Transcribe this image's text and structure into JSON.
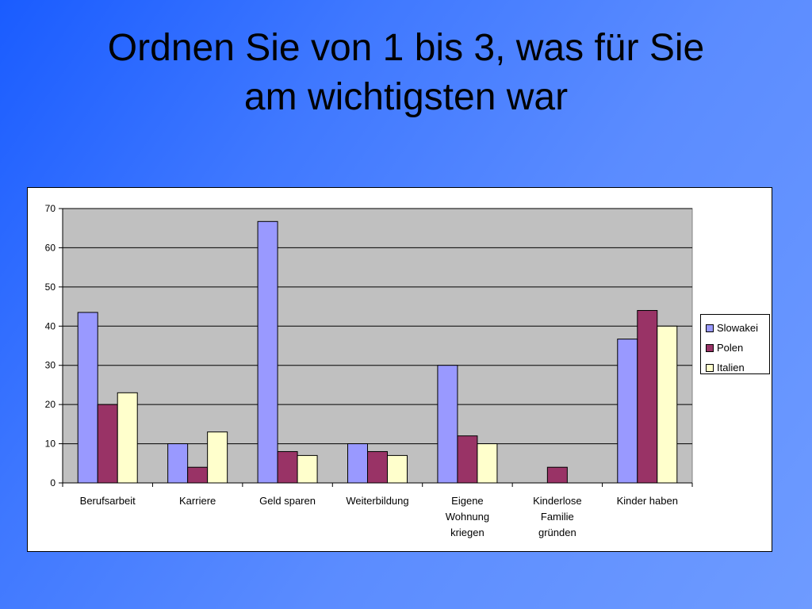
{
  "slide": {
    "title_lines": [
      "Ordnen Sie von 1 bis 3, was für Sie",
      "am wichtigsten war"
    ]
  },
  "chart_data": {
    "type": "bar",
    "title": "",
    "xlabel": "",
    "ylabel": "",
    "ylim": [
      0,
      70
    ],
    "yticks": [
      0,
      10,
      20,
      30,
      40,
      50,
      60,
      70
    ],
    "grid": true,
    "legend_position": "right",
    "plot_background": "#c0c0c0",
    "categories": [
      [
        "Berufsarbeit"
      ],
      [
        "Karriere"
      ],
      [
        "Geld sparen"
      ],
      [
        "Weiterbildung"
      ],
      [
        "Eigene",
        "Wohnung",
        "kriegen"
      ],
      [
        "Kinderlose",
        "Familie",
        "gründen"
      ],
      [
        "Kinder haben"
      ]
    ],
    "series": [
      {
        "name": "Slowakei",
        "color": "#9999ff",
        "values": [
          43.5,
          10,
          66.7,
          10,
          30,
          0,
          36.7
        ]
      },
      {
        "name": "Polen",
        "color": "#993366",
        "values": [
          20,
          4,
          8,
          8,
          12,
          4,
          44
        ]
      },
      {
        "name": "Italien",
        "color": "#ffffcc",
        "values": [
          23,
          13,
          7,
          7,
          10,
          0,
          40
        ]
      }
    ]
  }
}
